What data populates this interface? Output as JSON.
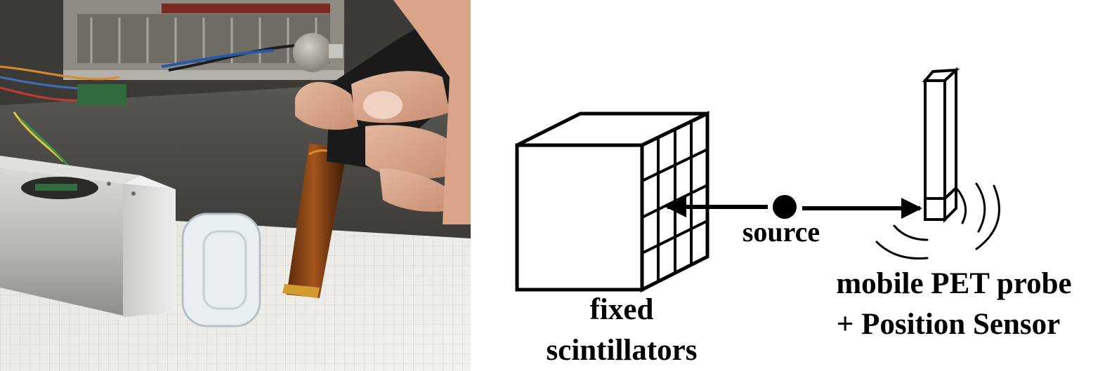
{
  "photo": {
    "description_icon": "photo-of-handheld-probe-and-detector"
  },
  "diagram": {
    "fixed_label_line1": "fixed",
    "fixed_label_line2": "scintillators",
    "source_label": "source",
    "probe_label_line1": "mobile PET probe",
    "probe_label_line2": "+ Position Sensor"
  },
  "colors": {
    "ink": "#000000",
    "background": "#ffffff"
  }
}
